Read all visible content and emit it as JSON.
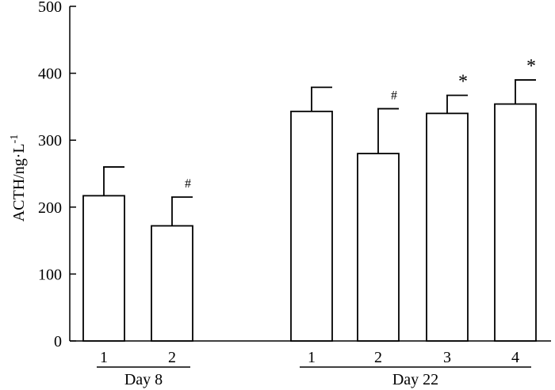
{
  "chart_data": {
    "type": "bar",
    "title": "",
    "xlabel": "",
    "ylabel": "ACTH/ng·L",
    "ylabel_superscript": "-1",
    "ylim": [
      0,
      500
    ],
    "yticks": [
      "0",
      "100",
      "200",
      "300",
      "400",
      "500"
    ],
    "grid": false,
    "groups": [
      {
        "label": "Day 8",
        "bars": [
          {
            "category": "1",
            "value": 217,
            "error": 43,
            "mark": ""
          },
          {
            "category": "2",
            "value": 172,
            "error": 43,
            "mark": "#"
          }
        ]
      },
      {
        "label": "Day 22",
        "bars": [
          {
            "category": "1",
            "value": 343,
            "error": 36,
            "mark": ""
          },
          {
            "category": "2",
            "value": 280,
            "error": 67,
            "mark": "#"
          },
          {
            "category": "3",
            "value": 340,
            "error": 27,
            "mark": "*"
          },
          {
            "category": "4",
            "value": 354,
            "error": 36,
            "mark": "*"
          }
        ]
      }
    ],
    "colors": {
      "bar_fill": "#ffffff",
      "stroke": "#000000"
    }
  }
}
